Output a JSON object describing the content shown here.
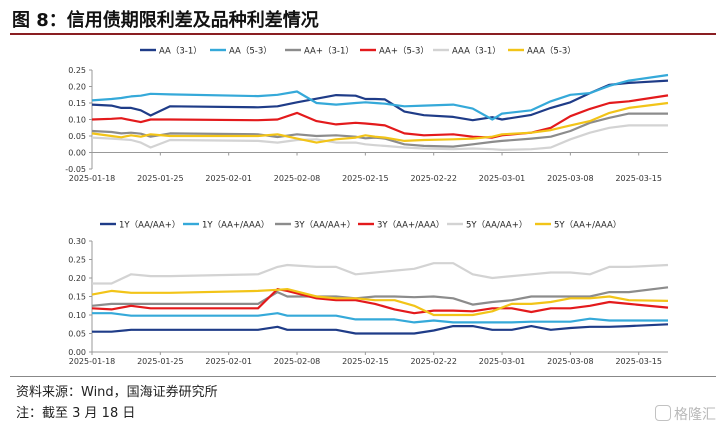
{
  "figure_title": "图 8：信用债期限利差及品种利差情况",
  "source": "资料来源：Wind，国海证券研究所",
  "note": "注：截至 3 月 18 日",
  "watermark": "格隆汇",
  "chart_data": [
    {
      "type": "line",
      "ylim": [
        -0.05,
        0.25
      ],
      "yticks": [
        "-0.05",
        "0.00",
        "0.05",
        "0.10",
        "0.15",
        "0.20",
        "0.25"
      ],
      "xticks": [
        "2025-01-18",
        "2025-01-25",
        "2025-02-01",
        "2025-02-08",
        "2025-02-15",
        "2025-02-22",
        "2025-03-01",
        "2025-03-08",
        "2025-03-15"
      ],
      "x": [
        "2025-01-18",
        "2025-01-20",
        "2025-01-21",
        "2025-01-22",
        "2025-01-23",
        "2025-01-24",
        "2025-01-26",
        "2025-02-04",
        "2025-02-06",
        "2025-02-08",
        "2025-02-10",
        "2025-02-12",
        "2025-02-14",
        "2025-02-15",
        "2025-02-16",
        "2025-02-17",
        "2025-02-19",
        "2025-02-21",
        "2025-02-24",
        "2025-02-26",
        "2025-02-28",
        "2025-03-01",
        "2025-03-04",
        "2025-03-06",
        "2025-03-08",
        "2025-03-10",
        "2025-03-12",
        "2025-03-14",
        "2025-03-18"
      ],
      "series": [
        {
          "name": "AA（3-1）",
          "color": "#1f3c88",
          "values": [
            0.145,
            0.142,
            0.135,
            0.135,
            0.128,
            0.112,
            0.14,
            0.137,
            0.14,
            0.152,
            0.163,
            0.174,
            0.172,
            0.162,
            0.162,
            0.161,
            0.124,
            0.113,
            0.108,
            0.098,
            0.107,
            0.1,
            0.114,
            0.135,
            0.152,
            0.18,
            0.205,
            0.211,
            0.218
          ]
        },
        {
          "name": "AA（5-3）",
          "color": "#35a9d9",
          "values": [
            0.158,
            0.162,
            0.165,
            0.17,
            0.172,
            0.178,
            0.176,
            0.171,
            0.175,
            0.185,
            0.15,
            0.145,
            0.15,
            0.152,
            0.15,
            0.148,
            0.14,
            0.142,
            0.145,
            0.133,
            0.1,
            0.118,
            0.128,
            0.155,
            0.175,
            0.18,
            0.202,
            0.218,
            0.235
          ]
        },
        {
          "name": "AA+（3-1）",
          "color": "#8c8c8c",
          "values": [
            0.065,
            0.062,
            0.058,
            0.06,
            0.057,
            0.048,
            0.058,
            0.055,
            0.047,
            0.055,
            0.05,
            0.052,
            0.048,
            0.043,
            0.045,
            0.042,
            0.025,
            0.02,
            0.018,
            0.025,
            0.032,
            0.035,
            0.042,
            0.048,
            0.065,
            0.09,
            0.105,
            0.118,
            0.118
          ]
        },
        {
          "name": "AA+（5-3）",
          "color": "#e31a1c",
          "values": [
            0.1,
            0.102,
            0.104,
            0.098,
            0.092,
            0.1,
            0.1,
            0.098,
            0.1,
            0.12,
            0.095,
            0.085,
            0.09,
            0.088,
            0.085,
            0.082,
            0.058,
            0.052,
            0.055,
            0.048,
            0.045,
            0.052,
            0.06,
            0.075,
            0.11,
            0.132,
            0.15,
            0.155,
            0.173
          ]
        },
        {
          "name": "AAA（3-1）",
          "color": "#d3d3d3",
          "values": [
            0.045,
            0.042,
            0.04,
            0.038,
            0.03,
            0.015,
            0.038,
            0.035,
            0.03,
            0.038,
            0.04,
            0.03,
            0.03,
            0.025,
            0.022,
            0.02,
            0.015,
            0.012,
            0.01,
            0.012,
            0.01,
            0.008,
            0.01,
            0.015,
            0.04,
            0.06,
            0.075,
            0.082,
            0.082
          ]
        },
        {
          "name": "AAA（5-3）",
          "color": "#f2c418",
          "values": [
            0.058,
            0.05,
            0.046,
            0.052,
            0.048,
            0.055,
            0.05,
            0.05,
            0.055,
            0.042,
            0.03,
            0.04,
            0.045,
            0.052,
            0.048,
            0.045,
            0.035,
            0.038,
            0.04,
            0.042,
            0.048,
            0.055,
            0.06,
            0.068,
            0.082,
            0.095,
            0.12,
            0.135,
            0.15
          ]
        }
      ]
    },
    {
      "type": "line",
      "ylim": [
        0.0,
        0.3
      ],
      "yticks": [
        "0.00",
        "0.05",
        "0.10",
        "0.15",
        "0.20",
        "0.25",
        "0.30"
      ],
      "xticks": [
        "2025-01-18",
        "2025-01-25",
        "2025-02-01",
        "2025-02-08",
        "2025-02-15",
        "2025-02-22",
        "2025-03-01",
        "2025-03-08",
        "2025-03-15"
      ],
      "x": [
        "2025-01-18",
        "2025-01-20",
        "2025-01-22",
        "2025-01-24",
        "2025-01-26",
        "2025-02-04",
        "2025-02-06",
        "2025-02-07",
        "2025-02-10",
        "2025-02-12",
        "2025-02-14",
        "2025-02-16",
        "2025-02-18",
        "2025-02-20",
        "2025-02-22",
        "2025-02-24",
        "2025-02-26",
        "2025-02-28",
        "2025-03-02",
        "2025-03-04",
        "2025-03-06",
        "2025-03-08",
        "2025-03-10",
        "2025-03-12",
        "2025-03-14",
        "2025-03-18"
      ],
      "series": [
        {
          "name": "1Y（AA/AA+）",
          "color": "#1f3c88",
          "values": [
            0.055,
            0.055,
            0.06,
            0.06,
            0.06,
            0.06,
            0.068,
            0.06,
            0.06,
            0.06,
            0.05,
            0.05,
            0.05,
            0.05,
            0.058,
            0.07,
            0.07,
            0.06,
            0.06,
            0.07,
            0.06,
            0.065,
            0.068,
            0.068,
            0.07,
            0.075
          ]
        },
        {
          "name": "1Y（AA+/AAA）",
          "color": "#35a9d9",
          "values": [
            0.105,
            0.105,
            0.098,
            0.098,
            0.098,
            0.098,
            0.105,
            0.098,
            0.098,
            0.098,
            0.088,
            0.088,
            0.088,
            0.08,
            0.085,
            0.08,
            0.08,
            0.08,
            0.08,
            0.082,
            0.082,
            0.082,
            0.09,
            0.085,
            0.085,
            0.085
          ]
        },
        {
          "name": "3Y（AA/AA+）",
          "color": "#8c8c8c",
          "values": [
            0.125,
            0.13,
            0.13,
            0.13,
            0.13,
            0.13,
            0.162,
            0.15,
            0.15,
            0.15,
            0.145,
            0.15,
            0.15,
            0.148,
            0.15,
            0.145,
            0.128,
            0.135,
            0.14,
            0.15,
            0.15,
            0.15,
            0.15,
            0.162,
            0.162,
            0.175
          ]
        },
        {
          "name": "3Y（AA+/AAA）",
          "color": "#e31a1c",
          "values": [
            0.118,
            0.115,
            0.125,
            0.118,
            0.118,
            0.118,
            0.17,
            0.165,
            0.145,
            0.14,
            0.14,
            0.13,
            0.115,
            0.105,
            0.112,
            0.112,
            0.11,
            0.118,
            0.118,
            0.108,
            0.118,
            0.118,
            0.125,
            0.135,
            0.13,
            0.12
          ]
        },
        {
          "name": "5Y（AA/AA+）",
          "color": "#d3d3d3",
          "values": [
            0.185,
            0.185,
            0.21,
            0.205,
            0.205,
            0.21,
            0.23,
            0.235,
            0.23,
            0.23,
            0.21,
            0.215,
            0.22,
            0.225,
            0.24,
            0.24,
            0.21,
            0.2,
            0.205,
            0.21,
            0.215,
            0.215,
            0.21,
            0.23,
            0.23,
            0.235
          ]
        },
        {
          "name": "5Y（AA+/AAA）",
          "color": "#f2c418",
          "values": [
            0.155,
            0.165,
            0.16,
            0.16,
            0.16,
            0.165,
            0.168,
            0.17,
            0.15,
            0.145,
            0.145,
            0.14,
            0.14,
            0.125,
            0.1,
            0.1,
            0.1,
            0.11,
            0.13,
            0.13,
            0.135,
            0.145,
            0.145,
            0.15,
            0.14,
            0.138
          ]
        }
      ]
    }
  ]
}
